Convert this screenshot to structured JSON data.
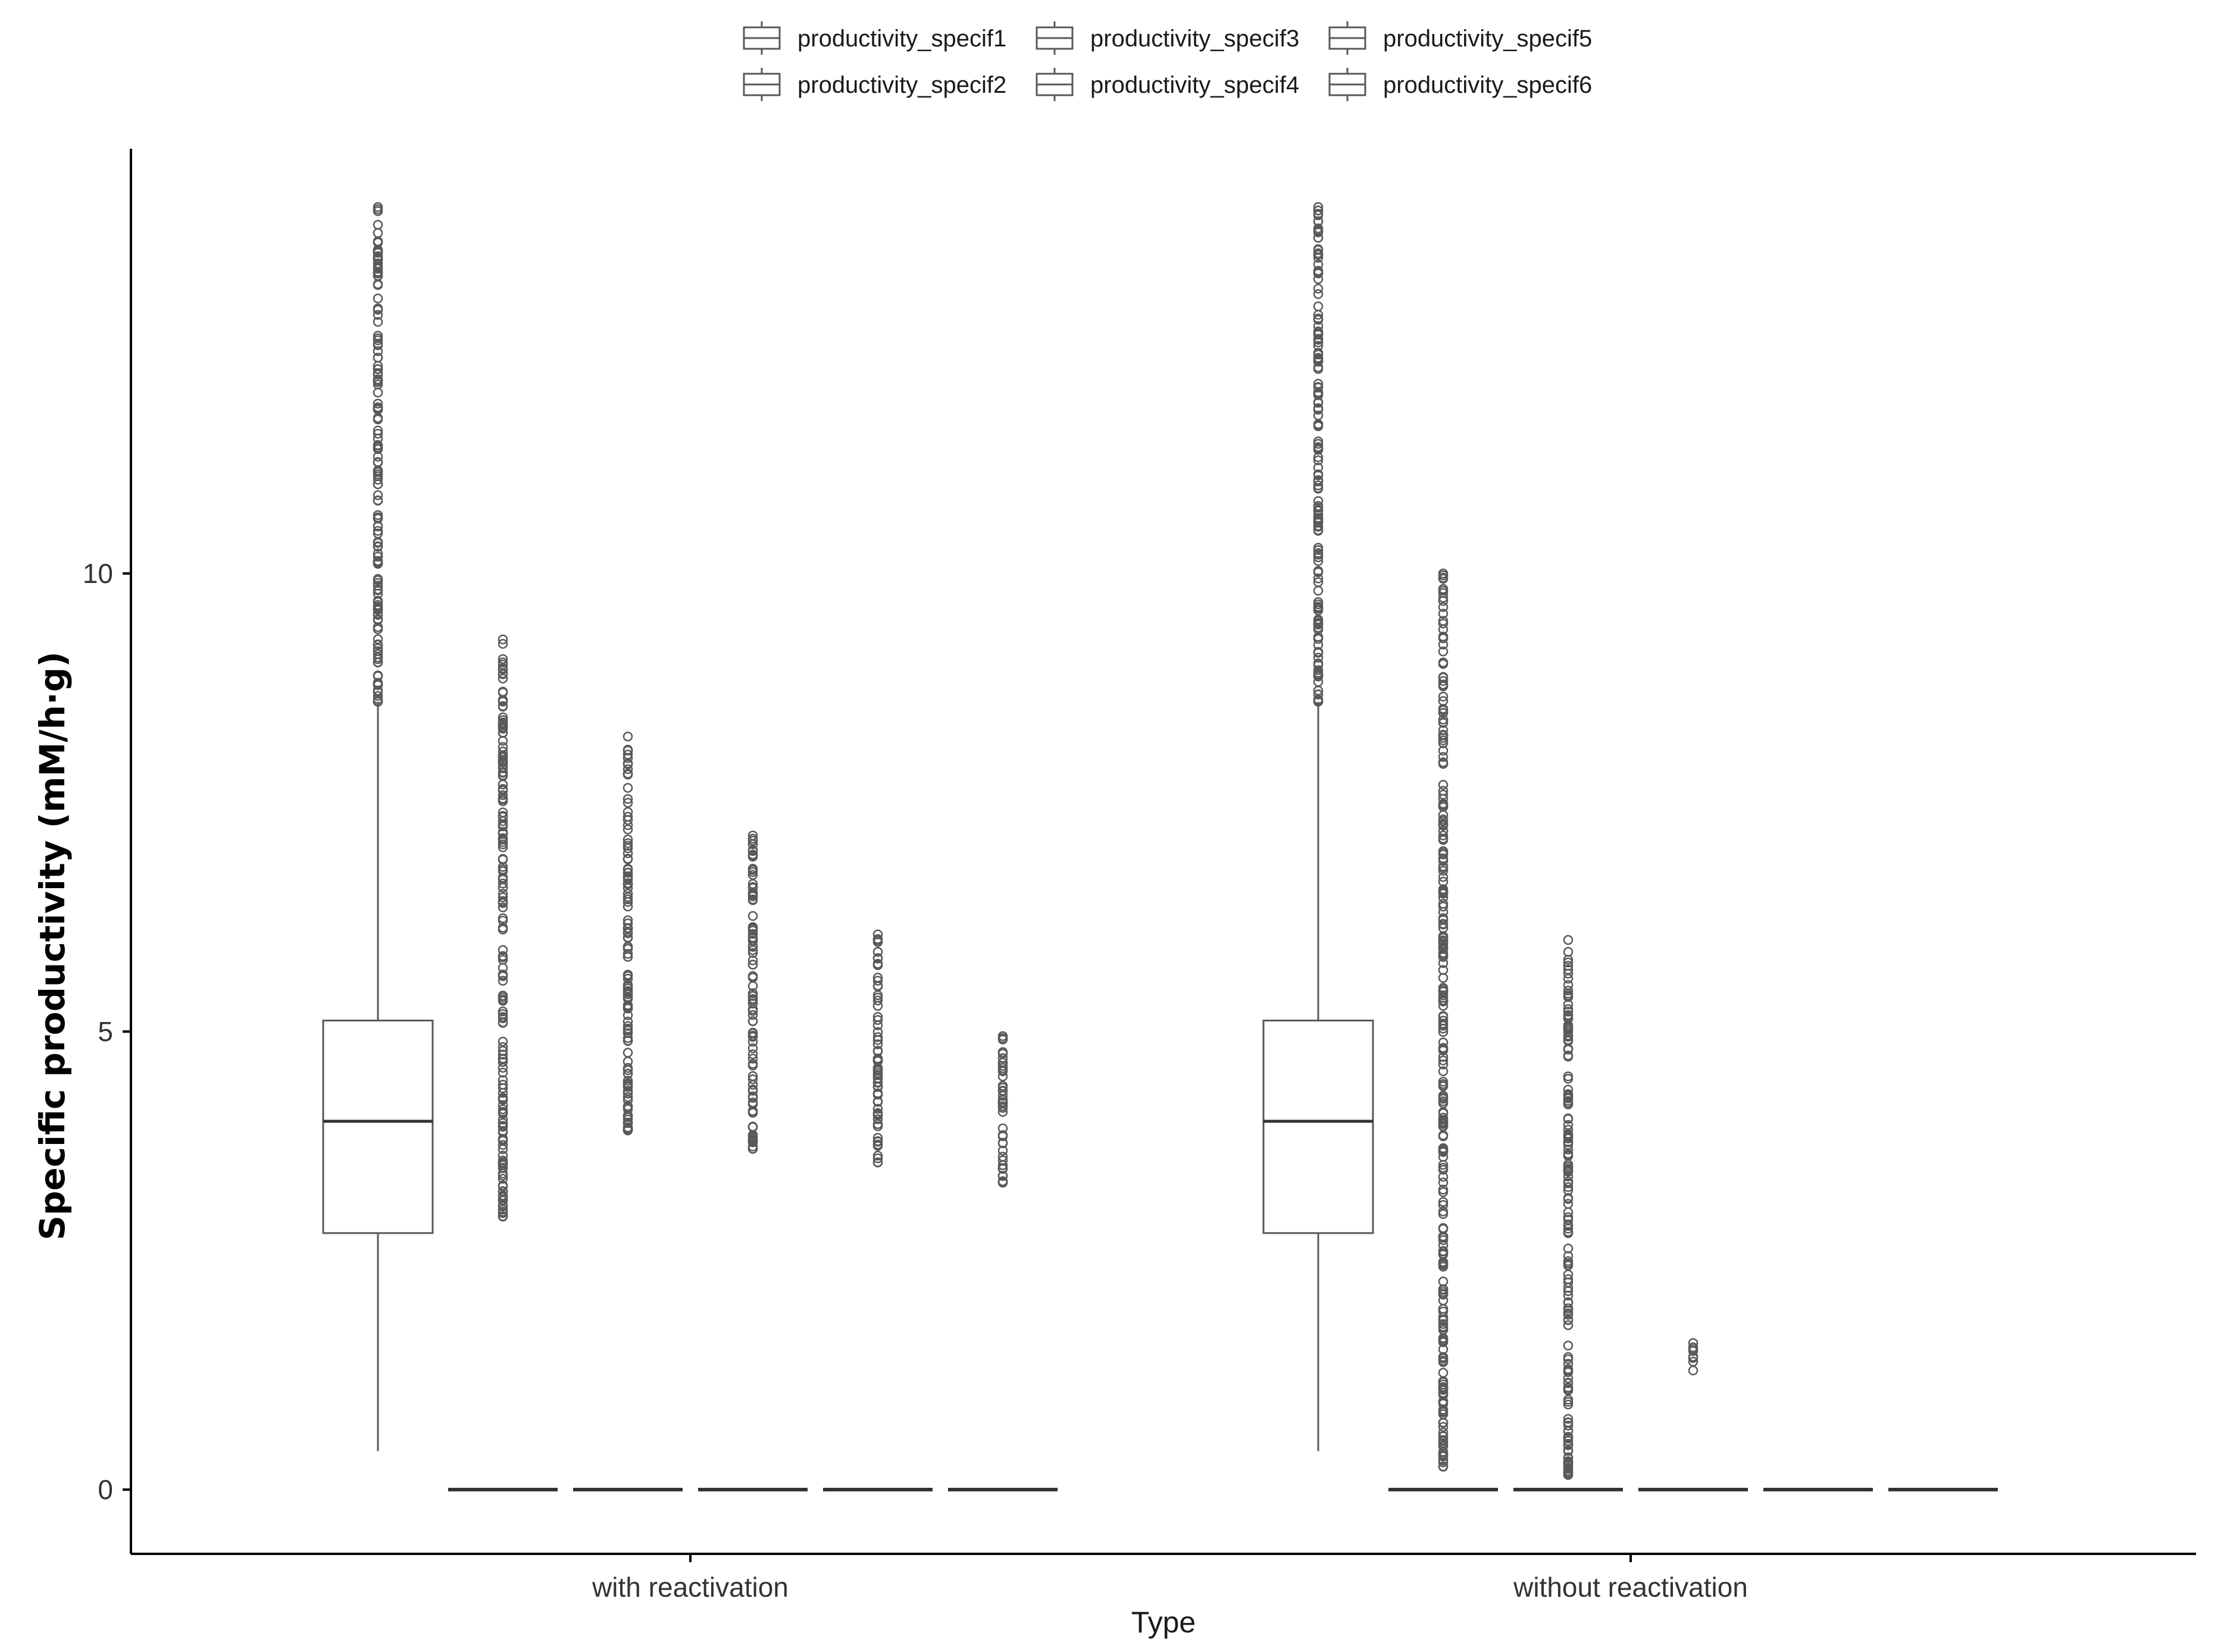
{
  "chart_data": {
    "type": "boxplot",
    "title": "",
    "xlabel": "Type",
    "ylabel": "Specific productivity (mM/h·g)",
    "ylim": [
      -0.65,
      14.7
    ],
    "yticks": [
      0,
      5,
      10
    ],
    "grid": false,
    "legend_position": "top",
    "categories": [
      "with reactivation",
      "without reactivation"
    ],
    "series": [
      {
        "name": "productivity_specif1",
        "boxes": [
          {
            "category": "with reactivation",
            "whisker_low": 0.42,
            "q1": 2.8,
            "median": 4.02,
            "q3": 5.12,
            "whisker_high": 8.6,
            "outliers_range": [
              8.6,
              14.0
            ]
          },
          {
            "category": "without reactivation",
            "whisker_low": 0.42,
            "q1": 2.8,
            "median": 4.02,
            "q3": 5.12,
            "whisker_high": 8.6,
            "outliers_range": [
              8.6,
              14.0
            ]
          }
        ]
      },
      {
        "name": "productivity_specif2",
        "boxes": [
          {
            "category": "with reactivation",
            "whisker_low": 0,
            "q1": 0,
            "median": 0,
            "q3": 0,
            "whisker_high": 0,
            "outliers_range": [
              2.98,
              9.28
            ]
          },
          {
            "category": "without reactivation",
            "whisker_low": 0,
            "q1": 0,
            "median": 0,
            "q3": 0,
            "whisker_high": 0,
            "outliers_range": [
              0.25,
              10.0
            ]
          }
        ]
      },
      {
        "name": "productivity_specif3",
        "boxes": [
          {
            "category": "with reactivation",
            "whisker_low": 0,
            "q1": 0,
            "median": 0,
            "q3": 0,
            "whisker_high": 0,
            "outliers_range": [
              3.92,
              8.22
            ]
          },
          {
            "category": "without reactivation",
            "whisker_low": 0,
            "q1": 0,
            "median": 0,
            "q3": 0,
            "whisker_high": 0,
            "outliers_range": [
              0.16,
              6.0
            ]
          }
        ]
      },
      {
        "name": "productivity_specif4",
        "boxes": [
          {
            "category": "with reactivation",
            "whisker_low": 0,
            "q1": 0,
            "median": 0,
            "q3": 0,
            "whisker_high": 0,
            "outliers_range": [
              3.72,
              7.14
            ]
          },
          {
            "category": "without reactivation",
            "whisker_low": 0,
            "q1": 0,
            "median": 0,
            "q3": 0,
            "whisker_high": 0,
            "outliers_range": [
              1.3,
              1.6
            ]
          }
        ]
      },
      {
        "name": "productivity_specif5",
        "boxes": [
          {
            "category": "with reactivation",
            "whisker_low": 0,
            "q1": 0,
            "median": 0,
            "q3": 0,
            "whisker_high": 0,
            "outliers_range": [
              3.57,
              6.06
            ]
          },
          {
            "category": "without reactivation",
            "whisker_low": 0,
            "q1": 0,
            "median": 0,
            "q3": 0,
            "whisker_high": 0,
            "outliers_range": null
          }
        ]
      },
      {
        "name": "productivity_specif6",
        "boxes": [
          {
            "category": "with reactivation",
            "whisker_low": 0,
            "q1": 0,
            "median": 0,
            "q3": 0,
            "whisker_high": 0,
            "outliers_range": [
              3.35,
              4.95
            ]
          },
          {
            "category": "without reactivation",
            "whisker_low": 0,
            "q1": 0,
            "median": 0,
            "q3": 0,
            "whisker_high": 0,
            "outliers_range": null
          }
        ]
      }
    ],
    "colors": {
      "box": "#595959",
      "axis": "#000000",
      "outlier": "#595959"
    }
  }
}
